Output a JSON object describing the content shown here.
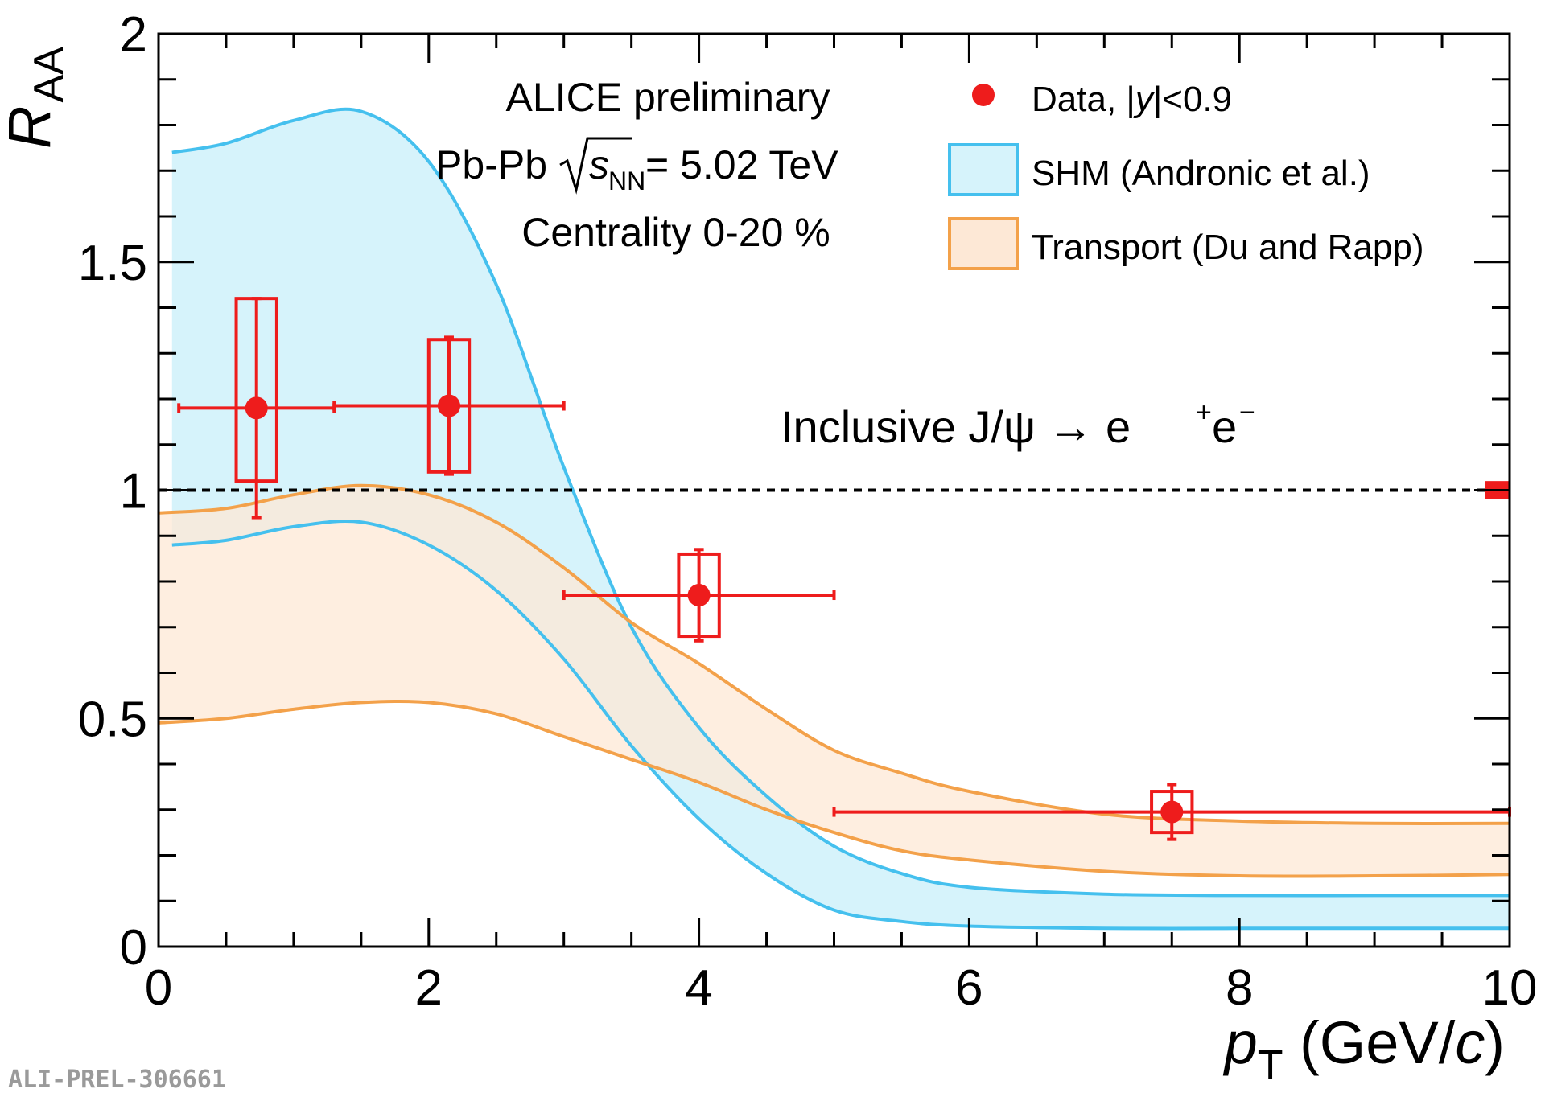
{
  "chart_data": {
    "type": "scatter",
    "xlabel": "p_T (GeV/c)",
    "xlabel_parts": {
      "p": "p",
      "sub": "T",
      "rest": " (GeV/",
      "c": "c",
      "close": ")"
    },
    "ylabel": "R_AA",
    "ylabel_parts": {
      "r": "R",
      "sub": "AA"
    },
    "xlim": [
      0,
      10
    ],
    "ylim": [
      0,
      2
    ],
    "x_ticks": [
      0,
      2,
      4,
      6,
      8,
      10
    ],
    "x_tick_labels": [
      "0",
      "2",
      "4",
      "6",
      "8",
      "10"
    ],
    "y_ticks": [
      0,
      0.5,
      1,
      1.5,
      2
    ],
    "y_tick_labels": [
      "0",
      "0.5",
      "1",
      "1.5",
      "2"
    ],
    "reference_line": {
      "y": 1,
      "style": "dashed",
      "color": "#000000"
    },
    "global_uncertainty": {
      "x": 10,
      "y": 1,
      "half_height": 0.02,
      "color": "#ee1c1c"
    },
    "annotations": {
      "experiment": "ALICE preliminary",
      "system_prefix": "Pb-Pb",
      "s": "s",
      "nn": "NN",
      "energy": "= 5.02 TeV",
      "centrality": "Centrality 0-20 %",
      "process": "Inclusive J/ψ → e",
      "process_sup1": "+",
      "process_mid": "e",
      "process_sup2": "−"
    },
    "legend": {
      "placement": "top-right",
      "entries": [
        {
          "label_prefix": "Data, |",
          "label_italic": "y",
          "label_suffix": "|<0.9",
          "kind": "marker",
          "color": "#ee1c1c"
        },
        {
          "label": "SHM (Andronic et al.)",
          "kind": "band",
          "color": "#45c0ee",
          "fill": "#d6f3fb"
        },
        {
          "label": "Transport (Du and Rapp)",
          "kind": "band",
          "color": "#f3a14a",
          "fill": "#fde8d6"
        }
      ]
    },
    "series": [
      {
        "name": "Data, |y|<0.9",
        "color": "#ee1c1c",
        "points": [
          {
            "x": 0.725,
            "y": 1.18,
            "xlo": 0.15,
            "xhi": 1.3,
            "stat": 0.24,
            "sys_lo": 1.02,
            "sys_hi": 1.42,
            "box_half_width": 0.15
          },
          {
            "x": 2.15,
            "y": 1.185,
            "xlo": 1.3,
            "xhi": 3.0,
            "stat": 0.15,
            "sys_lo": 1.04,
            "sys_hi": 1.33,
            "box_half_width": 0.15
          },
          {
            "x": 4.0,
            "y": 0.77,
            "xlo": 3.0,
            "xhi": 5.0,
            "stat": 0.1,
            "sys_lo": 0.68,
            "sys_hi": 0.86,
            "box_half_width": 0.15
          },
          {
            "x": 7.5,
            "y": 0.295,
            "xlo": 5.0,
            "xhi": 10.0,
            "stat": 0.06,
            "sys_lo": 0.25,
            "sys_hi": 0.34,
            "box_half_width": 0.15
          }
        ]
      },
      {
        "name": "SHM (Andronic et al.)",
        "color": "#45c0ee",
        "fill": "#d6f3fb",
        "x": [
          0.1,
          0.5,
          1.0,
          1.5,
          2.0,
          2.5,
          3.0,
          3.5,
          4.0,
          4.5,
          5.0,
          5.5,
          6.0,
          7.0,
          8.0,
          9.0,
          10.0
        ],
        "upper": [
          1.74,
          1.76,
          1.81,
          1.83,
          1.72,
          1.45,
          1.05,
          0.7,
          0.48,
          0.33,
          0.22,
          0.16,
          0.13,
          0.115,
          0.112,
          0.112,
          0.112
        ],
        "lower": [
          0.88,
          0.89,
          0.92,
          0.93,
          0.88,
          0.78,
          0.63,
          0.44,
          0.28,
          0.16,
          0.08,
          0.055,
          0.045,
          0.04,
          0.04,
          0.04,
          0.04
        ]
      },
      {
        "name": "Transport (Du and Rapp)",
        "color": "#f3a14a",
        "fill": "#fde8d6",
        "x": [
          0.0,
          0.5,
          1.0,
          1.5,
          2.0,
          2.5,
          3.0,
          3.5,
          4.0,
          4.5,
          5.0,
          5.5,
          6.0,
          7.0,
          8.0,
          9.0,
          10.0
        ],
        "upper": [
          0.95,
          0.96,
          0.99,
          1.01,
          0.99,
          0.93,
          0.83,
          0.71,
          0.62,
          0.52,
          0.43,
          0.38,
          0.34,
          0.29,
          0.275,
          0.27,
          0.27
        ],
        "lower": [
          0.49,
          0.5,
          0.52,
          0.535,
          0.535,
          0.51,
          0.46,
          0.41,
          0.36,
          0.3,
          0.25,
          0.21,
          0.19,
          0.165,
          0.155,
          0.155,
          0.158
        ]
      }
    ]
  },
  "watermark": "ALI-PREL-306661"
}
